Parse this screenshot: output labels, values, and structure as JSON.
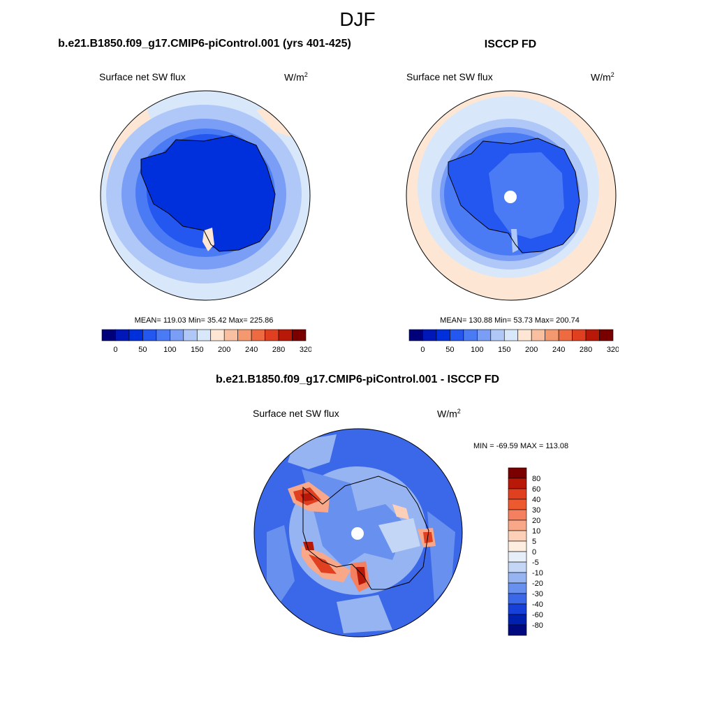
{
  "figure": {
    "title": "DJF"
  },
  "panels": {
    "model": {
      "title": "b.e21.B1850.f09_g17.CMIP6-piControl.001 (yrs 401-425)",
      "variable": "Surface net SW flux",
      "units_base": "W/m",
      "units_exp": "2",
      "stats": "MEAN= 119.03  Min=  35.42  Max= 225.86",
      "mean": 119.03,
      "min": 35.42,
      "max": 225.86
    },
    "obs": {
      "title": "ISCCP FD",
      "variable": "Surface net SW flux",
      "units_base": "W/m",
      "units_exp": "2",
      "stats": "MEAN= 130.88  Min=  53.73  Max= 200.74",
      "mean": 130.88,
      "min": 53.73,
      "max": 200.74
    },
    "diff": {
      "title": "b.e21.B1850.f09_g17.CMIP6-piControl.001 - ISCCP FD",
      "variable": "Surface net SW flux",
      "units_base": "W/m",
      "units_exp": "2",
      "stats": "MIN = -69.59 MAX = 113.08",
      "min": -69.59,
      "max": 113.08
    }
  },
  "colorbar_main": {
    "colors": [
      "#00007a",
      "#0018b8",
      "#0030dc",
      "#2456f0",
      "#4a7af4",
      "#7a9ef6",
      "#b0c8f8",
      "#d8e8fa",
      "#fde6d4",
      "#f8c0a0",
      "#f49870",
      "#ee6a40",
      "#e04020",
      "#b81808",
      "#7a0000"
    ],
    "tick_labels": [
      "0",
      "50",
      "100",
      "150",
      "200",
      "240",
      "280",
      "320"
    ]
  },
  "colorbar_diff": {
    "colors": [
      "#7a0000",
      "#b81808",
      "#e04020",
      "#ee5a30",
      "#f48060",
      "#f8a888",
      "#fcd0b8",
      "#fdeee0",
      "#e6eefa",
      "#c4d6f6",
      "#96b4f2",
      "#6890ee",
      "#3a68e8",
      "#1640d8",
      "#0020b0",
      "#000a80"
    ],
    "tick_labels": [
      "80",
      "60",
      "40",
      "30",
      "20",
      "10",
      "5",
      "0",
      "-5",
      "-10",
      "-20",
      "-30",
      "-40",
      "-60",
      "-80"
    ]
  },
  "map_colors": {
    "light_blue": "#d8e8fa",
    "pale_blue": "#b0c8f8",
    "mid_blue": "#7a9ef6",
    "blue": "#4a7af4",
    "strong_blue": "#2456f0",
    "deep_blue": "#0030dc",
    "salmon": "#fde6d4",
    "peach": "#f8c0a0",
    "orange": "#ee6a40",
    "red": "#e04020",
    "dark_red": "#b81808"
  }
}
